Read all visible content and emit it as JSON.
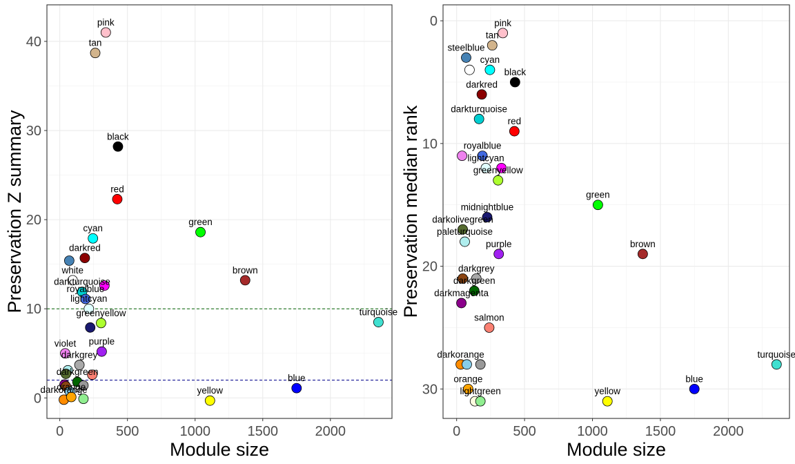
{
  "chart_data": [
    {
      "type": "scatter",
      "xlabel": "Module size",
      "ylabel": "Preservation Z summary",
      "xlim": [
        -95,
        2455
      ],
      "ylim": [
        -2.3,
        44.1
      ],
      "y_reversed": false,
      "x_ticks": [
        0,
        500,
        1000,
        1500,
        2000
      ],
      "y_ticks": [
        0,
        10,
        20,
        30,
        40
      ],
      "grid": true,
      "reference_lines": [
        {
          "y": 10,
          "color": "#006400"
        },
        {
          "y": 2,
          "color": "#00008B"
        }
      ],
      "points": [
        {
          "label": "pink",
          "x": 340,
          "y": 41,
          "color": "#FFC0CB",
          "show_label": true
        },
        {
          "label": "tan",
          "x": 262,
          "y": 38.7,
          "color": "#D2B48C",
          "show_label": true
        },
        {
          "label": "black",
          "x": 430,
          "y": 28.2,
          "color": "#000000",
          "show_label": true
        },
        {
          "label": "red",
          "x": 425,
          "y": 22.3,
          "color": "#FF0000",
          "show_label": true
        },
        {
          "label": "green",
          "x": 1040,
          "y": 18.6,
          "color": "#00FF00",
          "show_label": true
        },
        {
          "label": "cyan",
          "x": 245,
          "y": 17.9,
          "color": "#00FFFF",
          "show_label": true
        },
        {
          "label": "darkred",
          "x": 185,
          "y": 15.7,
          "color": "#8B0000",
          "show_label": true
        },
        {
          "label": "steelblue",
          "x": 70,
          "y": 15.4,
          "color": "#4682B4",
          "show_label": false
        },
        {
          "label": "brown",
          "x": 1370,
          "y": 13.2,
          "color": "#A52A2A",
          "show_label": true
        },
        {
          "label": "white",
          "x": 95,
          "y": 13.2,
          "color": "#FFFFFF",
          "show_label": true
        },
        {
          "label": "magenta",
          "x": 330,
          "y": 12.6,
          "color": "#FF00FF",
          "show_label": false
        },
        {
          "label": "darkturquoise",
          "x": 165,
          "y": 11.9,
          "color": "#00CED1",
          "show_label": true
        },
        {
          "label": "royalblue",
          "x": 190,
          "y": 11.1,
          "color": "#4169E1",
          "show_label": true
        },
        {
          "label": "lightcyan",
          "x": 215,
          "y": 10,
          "color": "#E0FFFF",
          "show_label": true
        },
        {
          "label": "turquoise",
          "x": 2355,
          "y": 8.5,
          "color": "#40E0D0",
          "show_label": true
        },
        {
          "label": "greenyellow",
          "x": 305,
          "y": 8.4,
          "color": "#ADFF2F",
          "show_label": true
        },
        {
          "label": "midnightblue",
          "x": 225,
          "y": 7.9,
          "color": "#191970",
          "show_label": false
        },
        {
          "label": "purple",
          "x": 310,
          "y": 5.2,
          "color": "#A020F0",
          "show_label": true
        },
        {
          "label": "violet",
          "x": 40,
          "y": 5.0,
          "color": "#EE82EE",
          "show_label": true
        },
        {
          "label": "darkgrey",
          "x": 145,
          "y": 3.7,
          "color": "#A9A9A9",
          "show_label": true
        },
        {
          "label": "paleturquoise",
          "x": 60,
          "y": 3.1,
          "color": "#AFEEEE",
          "show_label": false
        },
        {
          "label": "salmon",
          "x": 240,
          "y": 2.6,
          "color": "#FA8072",
          "show_label": false
        },
        {
          "label": "darkolivegreen",
          "x": 45,
          "y": 2.7,
          "color": "#556B2F",
          "show_label": false
        },
        {
          "label": "darkgreen",
          "x": 130,
          "y": 1.8,
          "color": "#006400",
          "show_label": true
        },
        {
          "label": "grey60",
          "x": 175,
          "y": 1.4,
          "color": "#999999",
          "show_label": false
        },
        {
          "label": "darkmagenta",
          "x": 35,
          "y": 1.5,
          "color": "#8B008B",
          "show_label": false
        },
        {
          "label": "saddlebrown",
          "x": 45,
          "y": 1.3,
          "color": "#8B4513",
          "show_label": false
        },
        {
          "label": "blue",
          "x": 1750,
          "y": 1.1,
          "color": "#0000FF",
          "show_label": true
        },
        {
          "label": "skyblue",
          "x": 75,
          "y": 0.7,
          "color": "#87CEEB",
          "show_label": false
        },
        {
          "label": "darkorange",
          "x": 30,
          "y": -0.2,
          "color": "#FF8C00",
          "show_label": true
        },
        {
          "label": "orange",
          "x": 85,
          "y": 0.1,
          "color": "#FFA500",
          "show_label": true
        },
        {
          "label": "lightgreen",
          "x": 175,
          "y": -0.1,
          "color": "#90EE90",
          "show_label": false
        },
        {
          "label": "yellow",
          "x": 1110,
          "y": -0.3,
          "color": "#FFFF00",
          "show_label": true
        }
      ]
    },
    {
      "type": "scatter",
      "xlabel": "Module size",
      "ylabel": "Preservation median rank",
      "xlim": [
        -100,
        2450
      ],
      "ylim": [
        -1.3,
        32.4
      ],
      "y_reversed": true,
      "x_ticks": [
        0,
        500,
        1000,
        1500,
        2000
      ],
      "y_ticks": [
        0,
        10,
        20,
        30
      ],
      "grid": true,
      "reference_lines": [],
      "points": [
        {
          "label": "pink",
          "x": 340,
          "y": 1,
          "color": "#FFC0CB",
          "show_label": true
        },
        {
          "label": "tan",
          "x": 262,
          "y": 2,
          "color": "#D2B48C",
          "show_label": true
        },
        {
          "label": "steelblue",
          "x": 70,
          "y": 3,
          "color": "#4682B4",
          "show_label": true
        },
        {
          "label": "white",
          "x": 95,
          "y": 4,
          "color": "#FFFFFF",
          "show_label": false
        },
        {
          "label": "cyan",
          "x": 245,
          "y": 4,
          "color": "#00FFFF",
          "show_label": true
        },
        {
          "label": "black",
          "x": 430,
          "y": 5,
          "color": "#000000",
          "show_label": true
        },
        {
          "label": "darkred",
          "x": 185,
          "y": 6,
          "color": "#8B0000",
          "show_label": true
        },
        {
          "label": "darkturquoise",
          "x": 165,
          "y": 8,
          "color": "#00CED1",
          "show_label": true
        },
        {
          "label": "red",
          "x": 425,
          "y": 9,
          "color": "#FF0000",
          "show_label": true
        },
        {
          "label": "royalblue",
          "x": 190,
          "y": 11,
          "color": "#4169E1",
          "show_label": true
        },
        {
          "label": "violet",
          "x": 40,
          "y": 11,
          "color": "#EE82EE",
          "show_label": false
        },
        {
          "label": "lightcyan",
          "x": 215,
          "y": 12,
          "color": "#E0FFFF",
          "show_label": true
        },
        {
          "label": "magenta",
          "x": 330,
          "y": 12,
          "color": "#FF00FF",
          "show_label": false
        },
        {
          "label": "greenyellow",
          "x": 305,
          "y": 13,
          "color": "#ADFF2F",
          "show_label": true
        },
        {
          "label": "green",
          "x": 1040,
          "y": 15,
          "color": "#00FF00",
          "show_label": true
        },
        {
          "label": "midnightblue",
          "x": 225,
          "y": 16,
          "color": "#191970",
          "show_label": true
        },
        {
          "label": "darkolivegreen",
          "x": 45,
          "y": 17,
          "color": "#556B2F",
          "show_label": true
        },
        {
          "label": "paleturquoise",
          "x": 60,
          "y": 18,
          "color": "#AFEEEE",
          "show_label": true
        },
        {
          "label": "purple",
          "x": 310,
          "y": 19,
          "color": "#A020F0",
          "show_label": true
        },
        {
          "label": "brown",
          "x": 1370,
          "y": 19,
          "color": "#A52A2A",
          "show_label": true
        },
        {
          "label": "darkgrey",
          "x": 145,
          "y": 21,
          "color": "#A9A9A9",
          "show_label": true
        },
        {
          "label": "saddlebrown",
          "x": 45,
          "y": 21,
          "color": "#8B4513",
          "show_label": false
        },
        {
          "label": "darkgreen",
          "x": 130,
          "y": 22,
          "color": "#006400",
          "show_label": true
        },
        {
          "label": "darkmagenta",
          "x": 35,
          "y": 23,
          "color": "#8B008B",
          "show_label": true
        },
        {
          "label": "salmon",
          "x": 240,
          "y": 25,
          "color": "#FA8072",
          "show_label": true
        },
        {
          "label": "darkorange",
          "x": 30,
          "y": 28,
          "color": "#FF8C00",
          "show_label": true
        },
        {
          "label": "skyblue",
          "x": 75,
          "y": 28,
          "color": "#87CEEB",
          "show_label": false
        },
        {
          "label": "grey60",
          "x": 175,
          "y": 28,
          "color": "#999999",
          "show_label": false
        },
        {
          "label": "turquoise",
          "x": 2355,
          "y": 28,
          "color": "#40E0D0",
          "show_label": true
        },
        {
          "label": "orange",
          "x": 85,
          "y": 30,
          "color": "#FFA500",
          "show_label": true
        },
        {
          "label": "blue",
          "x": 1750,
          "y": 30,
          "color": "#0000FF",
          "show_label": true
        },
        {
          "label": "lightyellow",
          "x": 135,
          "y": 31,
          "color": "#FFFFE0",
          "show_label": false
        },
        {
          "label": "lightgreen",
          "x": 175,
          "y": 31,
          "color": "#90EE90",
          "show_label": true
        },
        {
          "label": "yellow",
          "x": 1110,
          "y": 31,
          "color": "#FFFF00",
          "show_label": true
        }
      ]
    }
  ]
}
